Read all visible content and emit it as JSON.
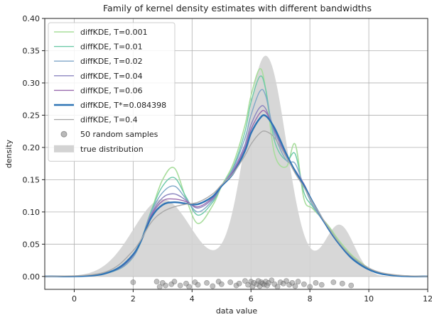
{
  "chart_data": {
    "type": "line",
    "title": "Family of kernel density estimates with different bandwidths",
    "xlabel": "data value",
    "ylabel": "density",
    "xlim": [
      -1,
      12
    ],
    "ylim": [
      -0.02,
      0.4
    ],
    "xticks": [
      0,
      2,
      4,
      6,
      8,
      10,
      12
    ],
    "yticks": [
      0.0,
      0.05,
      0.1,
      0.15,
      0.2,
      0.25,
      0.3,
      0.35,
      0.4
    ],
    "grid": true,
    "legend_position": "top-left",
    "true_distribution": {
      "name": "true distribution",
      "color": "#d3d3d3",
      "components": [
        {
          "weight": 0.3,
          "mean": 3.0,
          "sd": 1.0
        },
        {
          "weight": 0.6,
          "mean": 6.5,
          "sd": 0.7
        },
        {
          "weight": 0.1,
          "mean": 9.0,
          "sd": 0.5
        }
      ]
    },
    "samples": {
      "name": "50 random samples",
      "color": "#808080",
      "x": [
        2.0,
        2.8,
        2.9,
        3.0,
        3.1,
        3.3,
        3.4,
        3.6,
        3.8,
        3.9,
        4.1,
        4.2,
        4.5,
        4.7,
        4.9,
        5.0,
        5.3,
        5.5,
        5.6,
        5.8,
        5.9,
        6.0,
        6.05,
        6.1,
        6.2,
        6.25,
        6.3,
        6.35,
        6.4,
        6.45,
        6.5,
        6.55,
        6.6,
        6.7,
        6.8,
        6.9,
        7.0,
        7.1,
        7.2,
        7.3,
        7.4,
        7.5,
        7.6,
        7.8,
        8.0,
        8.2,
        8.4,
        8.8,
        9.1,
        9.4
      ],
      "y": [
        -0.009,
        -0.008,
        -0.016,
        -0.01,
        -0.014,
        -0.012,
        -0.008,
        -0.014,
        -0.011,
        -0.016,
        -0.009,
        -0.013,
        -0.01,
        -0.015,
        -0.008,
        -0.012,
        -0.009,
        -0.014,
        -0.011,
        -0.007,
        -0.013,
        -0.008,
        -0.016,
        -0.01,
        -0.012,
        -0.007,
        -0.015,
        -0.009,
        -0.011,
        -0.013,
        -0.008,
        -0.014,
        -0.01,
        -0.006,
        -0.012,
        -0.016,
        -0.009,
        -0.011,
        -0.007,
        -0.013,
        -0.01,
        -0.015,
        -0.008,
        -0.012,
        -0.016,
        -0.01,
        -0.013,
        -0.009,
        -0.011,
        -0.014
      ]
    },
    "series": [
      {
        "name": "diffKDE, T=0.001",
        "color": "#a8dd9c",
        "width": 1.6,
        "x": [
          -1,
          1,
          2,
          2.6,
          3.0,
          3.4,
          3.8,
          4.2,
          4.7,
          5.0,
          5.4,
          5.8,
          6.0,
          6.3,
          6.5,
          6.8,
          7.2,
          7.5,
          7.8,
          8.1,
          8.6,
          9.0,
          9.5,
          10.2,
          11,
          12
        ],
        "y": [
          0,
          0.004,
          0.03,
          0.1,
          0.15,
          0.168,
          0.12,
          0.082,
          0.11,
          0.14,
          0.175,
          0.235,
          0.28,
          0.322,
          0.29,
          0.19,
          0.17,
          0.205,
          0.12,
          0.105,
          0.08,
          0.055,
          0.03,
          0.008,
          0.001,
          0
        ]
      },
      {
        "name": "diffKDE, T=0.01",
        "color": "#6cc9a8",
        "width": 1.4,
        "x": [
          -1,
          1,
          2,
          2.6,
          3.0,
          3.4,
          3.8,
          4.2,
          4.7,
          5.0,
          5.4,
          5.8,
          6.0,
          6.3,
          6.5,
          6.8,
          7.2,
          7.5,
          7.8,
          8.1,
          8.6,
          9.0,
          9.5,
          10.2,
          11,
          12
        ],
        "y": [
          0,
          0.004,
          0.03,
          0.1,
          0.14,
          0.153,
          0.123,
          0.095,
          0.115,
          0.14,
          0.17,
          0.225,
          0.27,
          0.31,
          0.29,
          0.21,
          0.18,
          0.19,
          0.13,
          0.108,
          0.078,
          0.052,
          0.028,
          0.007,
          0.001,
          0
        ]
      },
      {
        "name": "diffKDE, T=0.02",
        "color": "#7fa7c8",
        "width": 1.4,
        "x": [
          -1,
          1,
          2,
          2.6,
          3.0,
          3.4,
          3.8,
          4.2,
          4.7,
          5.0,
          5.4,
          5.8,
          6.0,
          6.3,
          6.5,
          6.8,
          7.2,
          7.5,
          7.8,
          8.1,
          8.6,
          9.0,
          9.5,
          10.2,
          11,
          12
        ],
        "y": [
          0,
          0.004,
          0.03,
          0.098,
          0.13,
          0.14,
          0.12,
          0.1,
          0.118,
          0.14,
          0.168,
          0.215,
          0.25,
          0.287,
          0.28,
          0.22,
          0.18,
          0.175,
          0.14,
          0.11,
          0.076,
          0.05,
          0.026,
          0.007,
          0.001,
          0
        ]
      },
      {
        "name": "diffKDE, T=0.04",
        "color": "#8b86c0",
        "width": 1.4,
        "x": [
          -1,
          1,
          2,
          2.6,
          3.0,
          3.4,
          3.8,
          4.2,
          4.7,
          5.0,
          5.4,
          5.8,
          6.0,
          6.3,
          6.5,
          6.8,
          7.2,
          7.5,
          7.8,
          8.1,
          8.6,
          9.0,
          9.5,
          10.2,
          11,
          12
        ],
        "y": [
          0,
          0.004,
          0.032,
          0.095,
          0.122,
          0.128,
          0.118,
          0.106,
          0.12,
          0.14,
          0.165,
          0.205,
          0.235,
          0.262,
          0.26,
          0.225,
          0.185,
          0.165,
          0.143,
          0.114,
          0.076,
          0.05,
          0.025,
          0.007,
          0.001,
          0
        ]
      },
      {
        "name": "diffKDE, T=0.06",
        "color": "#9a6aae",
        "width": 1.4,
        "x": [
          -1,
          1,
          2,
          2.6,
          3.0,
          3.4,
          3.8,
          4.2,
          4.7,
          5.0,
          5.4,
          5.8,
          6.0,
          6.3,
          6.5,
          6.8,
          7.2,
          7.5,
          7.8,
          8.1,
          8.6,
          9.0,
          9.5,
          10.2,
          11,
          12
        ],
        "y": [
          0,
          0.004,
          0.033,
          0.093,
          0.117,
          0.12,
          0.116,
          0.108,
          0.122,
          0.14,
          0.163,
          0.2,
          0.228,
          0.253,
          0.255,
          0.228,
          0.188,
          0.163,
          0.143,
          0.115,
          0.076,
          0.05,
          0.025,
          0.007,
          0.001,
          0
        ]
      },
      {
        "name": "diffKDE, T*=0.084398",
        "color": "#2e74b5",
        "width": 2.4,
        "x": [
          -1,
          1,
          2,
          2.6,
          3.0,
          3.4,
          3.8,
          4.2,
          4.7,
          5.0,
          5.4,
          5.8,
          6.0,
          6.3,
          6.5,
          6.8,
          7.2,
          7.5,
          7.8,
          8.1,
          8.6,
          9.0,
          9.5,
          10.2,
          11,
          12
        ],
        "y": [
          0,
          0.004,
          0.034,
          0.09,
          0.111,
          0.115,
          0.113,
          0.112,
          0.124,
          0.14,
          0.16,
          0.195,
          0.222,
          0.245,
          0.249,
          0.23,
          0.19,
          0.163,
          0.141,
          0.115,
          0.076,
          0.05,
          0.025,
          0.007,
          0.001,
          0
        ]
      },
      {
        "name": "diffKDE, T=0.4",
        "color": "#a9a9a9",
        "width": 1.4,
        "x": [
          -1,
          1,
          2,
          2.6,
          3.0,
          3.4,
          3.8,
          4.2,
          4.7,
          5.0,
          5.4,
          5.8,
          6.0,
          6.3,
          6.5,
          6.8,
          7.2,
          7.5,
          7.8,
          8.1,
          8.6,
          9.0,
          9.5,
          10.2,
          11,
          12
        ],
        "y": [
          0,
          0.006,
          0.04,
          0.083,
          0.1,
          0.108,
          0.112,
          0.115,
          0.128,
          0.142,
          0.16,
          0.188,
          0.205,
          0.222,
          0.225,
          0.215,
          0.185,
          0.16,
          0.138,
          0.114,
          0.078,
          0.052,
          0.028,
          0.009,
          0.002,
          0
        ]
      }
    ]
  }
}
